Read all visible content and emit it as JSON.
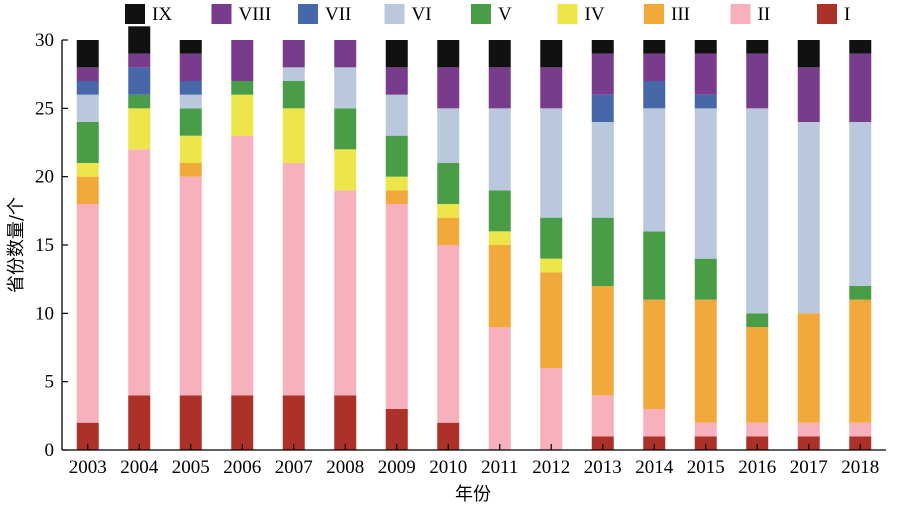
{
  "chart_data": {
    "type": "bar",
    "stacked": true,
    "xlabel": "年份",
    "ylabel": "省份数量/个",
    "ylim": [
      0,
      30
    ],
    "yticks": [
      0,
      5,
      10,
      15,
      20,
      25,
      30
    ],
    "categories": [
      "2003",
      "2004",
      "2005",
      "2006",
      "2007",
      "2008",
      "2009",
      "2010",
      "2011",
      "2012",
      "2013",
      "2014",
      "2015",
      "2016",
      "2017",
      "2018"
    ],
    "legend_position": "top",
    "legend_order": [
      "IX",
      "VIII",
      "VII",
      "VI",
      "V",
      "IV",
      "III",
      "II",
      "I"
    ],
    "series": [
      {
        "name": "I",
        "color": "#ab3129",
        "values": [
          2,
          4,
          4,
          4,
          4,
          4,
          3,
          2,
          0,
          0,
          1,
          1,
          1,
          1,
          1,
          1
        ]
      },
      {
        "name": "II",
        "color": "#f7b1bd",
        "values": [
          16,
          18,
          16,
          19,
          17,
          15,
          15,
          13,
          9,
          6,
          3,
          2,
          1,
          1,
          1,
          1
        ]
      },
      {
        "name": "III",
        "color": "#f2a93b",
        "values": [
          2,
          0,
          1,
          0,
          0,
          0,
          1,
          2,
          6,
          7,
          8,
          8,
          9,
          7,
          8,
          9
        ]
      },
      {
        "name": "IV",
        "color": "#ede54a",
        "values": [
          1,
          3,
          2,
          3,
          4,
          3,
          1,
          1,
          1,
          1,
          0,
          0,
          0,
          0,
          0,
          0
        ]
      },
      {
        "name": "V",
        "color": "#4a9d47",
        "values": [
          3,
          1,
          2,
          1,
          2,
          3,
          3,
          3,
          3,
          3,
          5,
          5,
          3,
          1,
          0,
          1
        ]
      },
      {
        "name": "VI",
        "color": "#b9c8dc",
        "values": [
          2,
          0,
          1,
          0,
          1,
          3,
          3,
          4,
          6,
          8,
          7,
          9,
          11,
          15,
          14,
          12
        ]
      },
      {
        "name": "VII",
        "color": "#4667a8",
        "values": [
          1,
          2,
          1,
          0,
          0,
          0,
          0,
          0,
          0,
          0,
          2,
          2,
          1,
          0,
          0,
          0
        ]
      },
      {
        "name": "VIII",
        "color": "#793b8c",
        "values": [
          1,
          1,
          2,
          3,
          2,
          2,
          2,
          3,
          3,
          3,
          3,
          2,
          3,
          4,
          4,
          5
        ]
      },
      {
        "name": "IX",
        "color": "#111111",
        "values": [
          2,
          2,
          1,
          0,
          0,
          0,
          2,
          2,
          2,
          2,
          1,
          1,
          1,
          1,
          2,
          1
        ]
      }
    ]
  }
}
